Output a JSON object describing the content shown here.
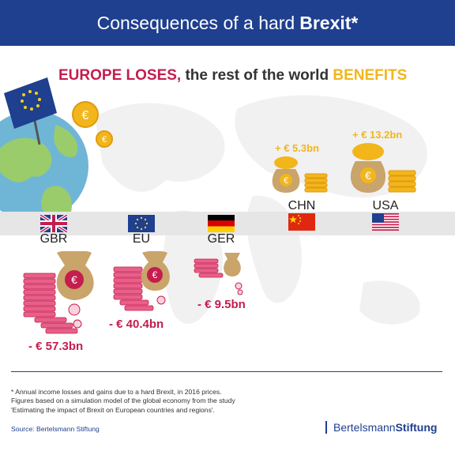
{
  "header": {
    "title_regular": "Consequences of a hard",
    "title_bold": "Brexit*"
  },
  "subtitle": {
    "lose": "EUROPE LOSES,",
    "middle": "the rest of the world",
    "benefit": "BENEFITS"
  },
  "colors": {
    "navy": "#1f3f8f",
    "loss": "#c41d4e",
    "gain": "#f2b61b",
    "band": "#e6e6e6"
  },
  "countries": [
    {
      "code": "GBR",
      "flag": "uk-flag-icon",
      "value": "- € 57.3bn",
      "type": "loss"
    },
    {
      "code": "EU",
      "flag": "eu-flag-icon",
      "value": "- € 40.4bn",
      "type": "loss"
    },
    {
      "code": "GER",
      "flag": "germany-flag-icon",
      "value": "- € 9.5bn",
      "type": "loss"
    },
    {
      "code": "CHN",
      "flag": "china-flag-icon",
      "value": "+ € 5.3bn",
      "type": "gain"
    },
    {
      "code": "USA",
      "flag": "usa-flag-icon",
      "value": "+ € 13.2bn",
      "type": "gain"
    }
  ],
  "footnote": {
    "line1": "* Annual income losses and gains due to a hard Brexit, in 2016 prices.",
    "line2": "Figures based on a simulation model of the global economy from the study",
    "line3": "'Estimating the impact of Brexit on European countries and regions'."
  },
  "source": "Source: Bertelsmann Stiftung",
  "logo": {
    "regular": "Bertelsmann",
    "bold": "Stiftung"
  }
}
